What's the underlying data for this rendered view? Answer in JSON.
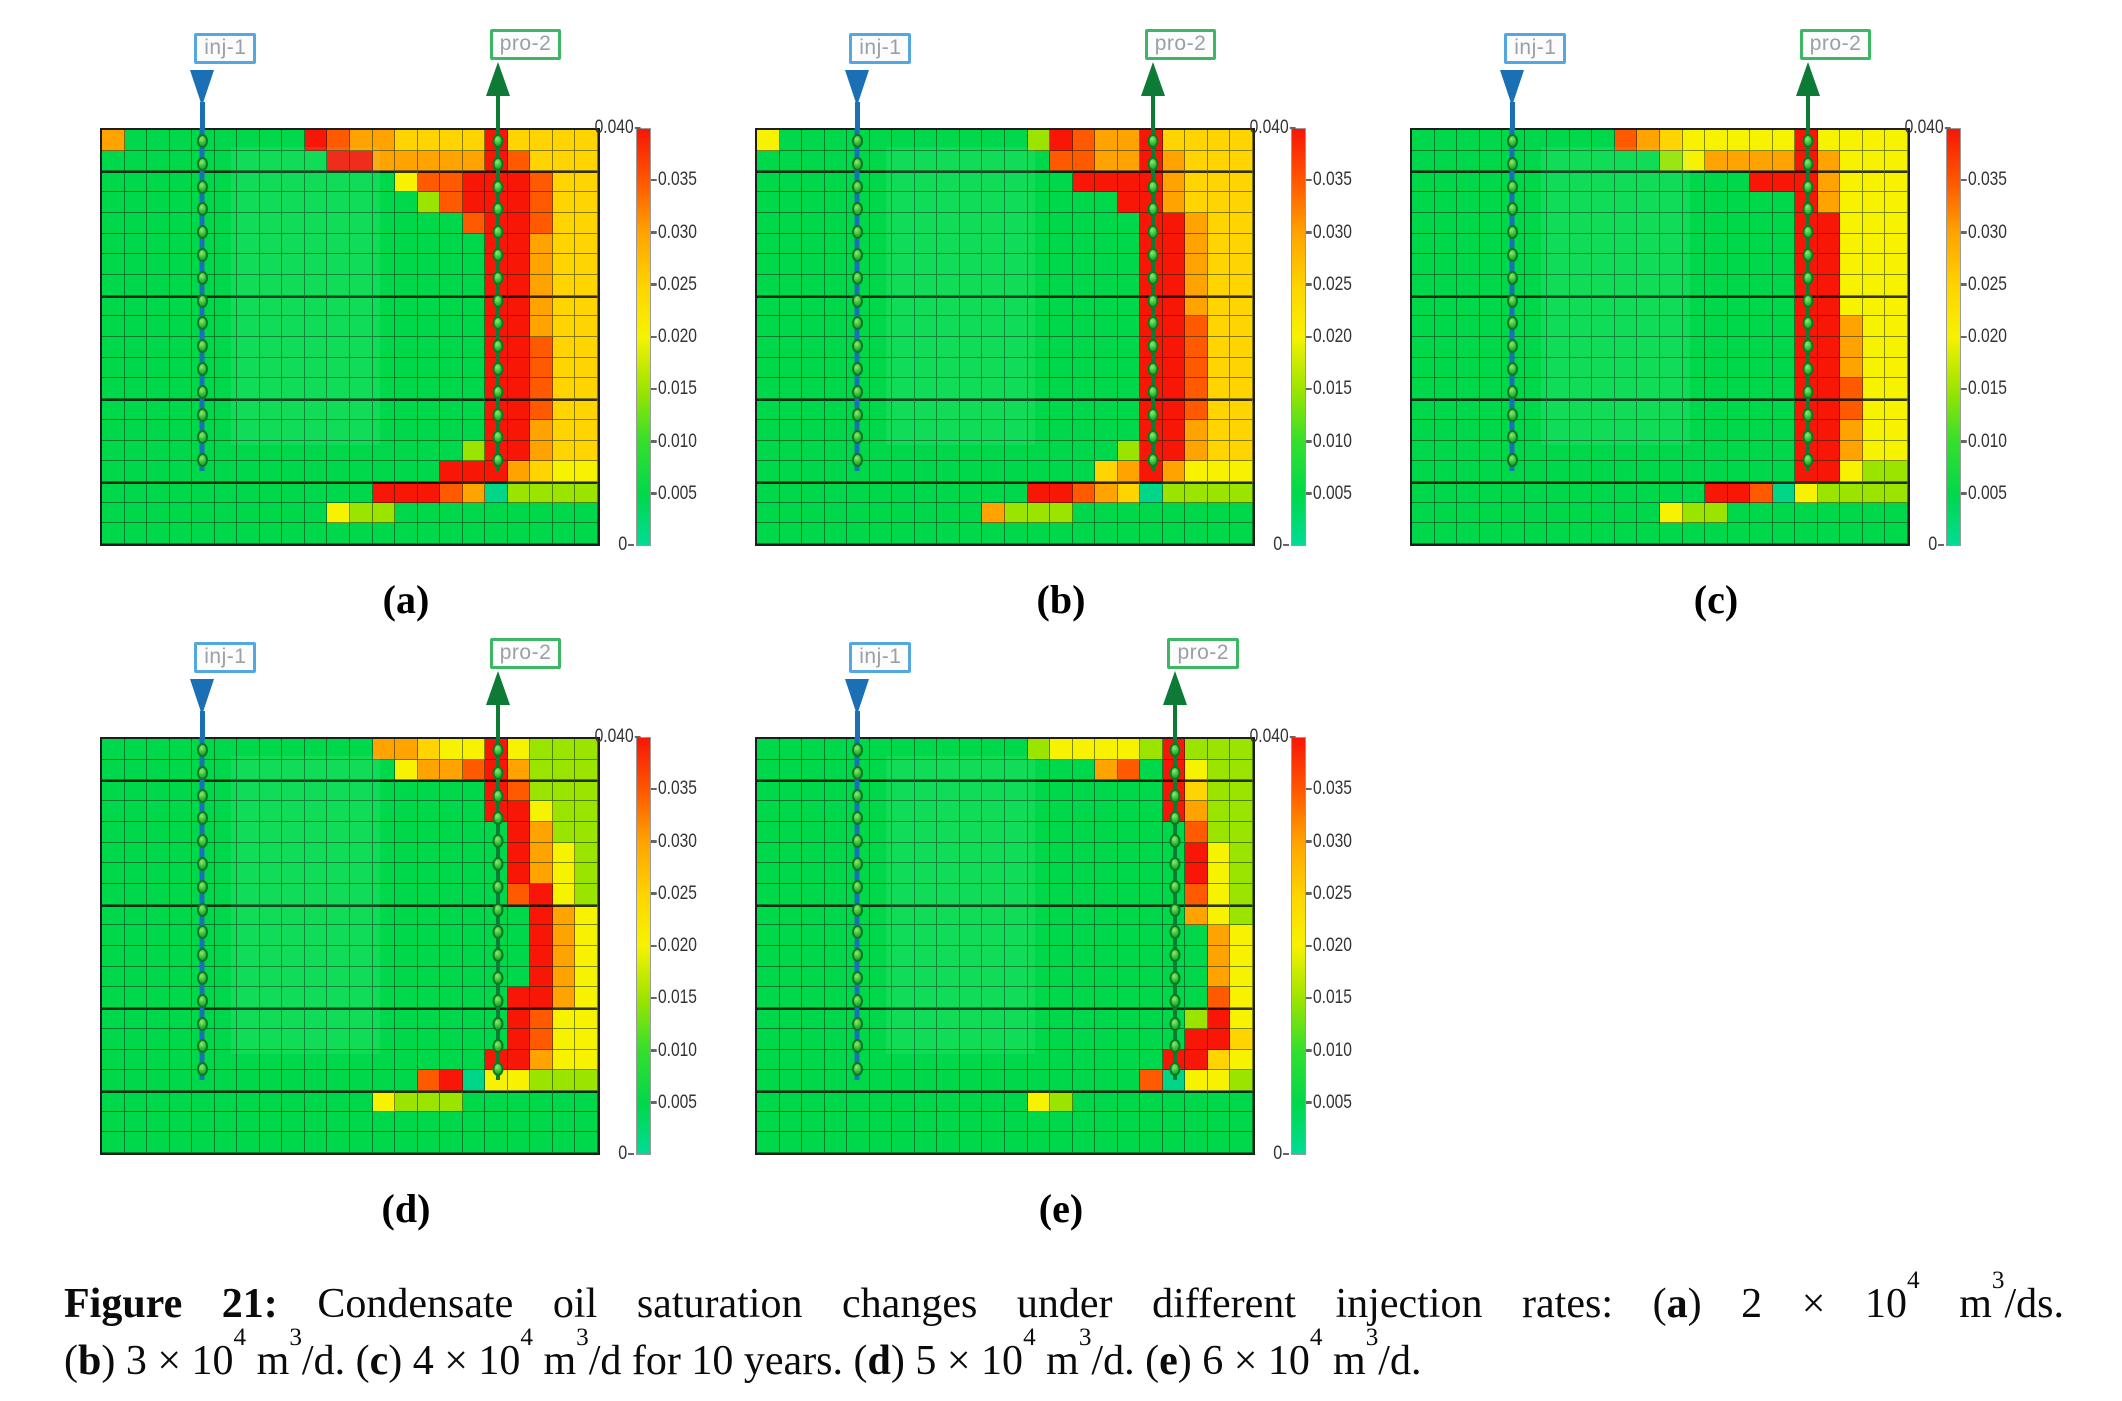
{
  "figure": {
    "caption_lines": [
      [
        {
          "t": "Figure 21:",
          "b": 1
        },
        {
          "t": " Condensate oil saturation changes under different injection rates: ("
        },
        {
          "t": "a",
          "b": 1
        },
        {
          "t": ") 2 × 10"
        },
        {
          "t": "4",
          "s": 1
        },
        {
          "t": " m"
        },
        {
          "t": "3",
          "s": 1
        },
        {
          "t": "/ds."
        }
      ],
      [
        {
          "t": "("
        },
        {
          "t": "b",
          "b": 1
        },
        {
          "t": ") 3 × 10"
        },
        {
          "t": "4",
          "s": 1
        },
        {
          "t": " m"
        },
        {
          "t": "3",
          "s": 1
        },
        {
          "t": "/d. ("
        },
        {
          "t": "c",
          "b": 1
        },
        {
          "t": ") 4 × 10"
        },
        {
          "t": "4",
          "s": 1
        },
        {
          "t": " m"
        },
        {
          "t": "3",
          "s": 1
        },
        {
          "t": "/d for 10 years. ("
        },
        {
          "t": "d",
          "b": 1
        },
        {
          "t": ") 5 × 10"
        },
        {
          "t": "4",
          "s": 1
        },
        {
          "t": " m"
        },
        {
          "t": "3",
          "s": 1
        },
        {
          "t": "/d. ("
        },
        {
          "t": "e",
          "b": 1
        },
        {
          "t": ") 6 × 10"
        },
        {
          "t": "4",
          "s": 1
        },
        {
          "t": " m"
        },
        {
          "t": "3",
          "s": 1
        },
        {
          "t": "/d."
        }
      ]
    ]
  },
  "wells": {
    "injector_name": "inj-1",
    "producer_name": "pro-2",
    "injector_color": "#1a6fb5",
    "injector_box_border": "#54a7e0",
    "producer_color": "#0d7a35",
    "producer_box_border": "#3cb863",
    "label_text_color": "#98a0a8"
  },
  "colorbar": {
    "max_label": "0.040",
    "min_label": "0",
    "side_labels": [
      "0.035",
      "0.030",
      "0.025",
      "0.020",
      "0.015",
      "0.010",
      "0.005"
    ],
    "gradient_top_to_bottom": [
      "#f81606",
      "#ff5a00",
      "#ffa300",
      "#ffd400",
      "#f6f200",
      "#9ae400",
      "#35df2c",
      "#00d84b",
      "#00dc95"
    ]
  },
  "palette": {
    "g": "#00d84b",
    "l": "#9ae400",
    "y": "#f6f200",
    "d": "#ffd400",
    "o": "#ffa300",
    "O": "#ff5a00",
    "r": "#f81606",
    "t": "#00d687"
  },
  "panels": [
    {
      "letter": "(a)",
      "row": 1,
      "inj_col": 4,
      "pro_col": 17,
      "grid": [
        "oggggggggrOooddddrdddd",
        "ggggggggggrrooooorOddd",
        "gggggggggggggyOOrrrOdd",
        "gggggggggggggglOrrrOdd",
        "ggggggggggggggggOrrOdd",
        "gggggggggggggggggrrodd",
        "gggggggggggggggggrrodd",
        "gggggggggggggggggrrodd",
        "gggggggggggggggggrrodd",
        "gggggggggggggggggrrodd",
        "gggggggggggggggggrrOdd",
        "gggggggggggggggggrrOdd",
        "gggggggggggggggggrrOdd",
        "gggggggggggggggggrrOdd",
        "gggggggggggggggggrrodd",
        "gggggggggggggggglrrodd",
        "gggggggggggggggrrrodyy",
        "ggggggggggggrrrOotllll",
        "ggggggggggyllggggggggg",
        "gggggggggggggggggggggg"
      ]
    },
    {
      "letter": "(b)",
      "row": 1,
      "inj_col": 4,
      "pro_col": 17,
      "grid": [
        "yggggggggggglrOoordddd",
        "gggggggggggggOOooroddd",
        "ggggggggggggggrrrroddd",
        "ggggggggggggggggrroddd",
        "gggggggggggggggggrrodd",
        "gggggggggggggggggrrodd",
        "gggggggggggggggggrrodd",
        "gggggggggggggggggrrodd",
        "gggggggggggggggggrrodd",
        "gggggggggggggggggrrOdd",
        "gggggggggggggggggrrOdd",
        "gggggggggggggggggrrOdd",
        "gggggggggggggggggrrOdd",
        "gggggggggggggggggrrOdd",
        "gggggggggggggggggrrodd",
        "gggggggggggggggglrrodd",
        "gggggggggggggggdoroyyy",
        "ggggggggggggrrOodtllll",
        "ggggggggggolllgggggggg",
        "gggggggggggggggggggggg"
      ]
    },
    {
      "letter": "(c)",
      "row": 1,
      "inj_col": 4,
      "pro_col": 17,
      "grid": [
        "gggggggggOodyyyyyryyyy",
        "ggggggggggglyooooroyyy",
        "gggggggggggggggrrroyyy",
        "gggggggggggggggggroyyy",
        "gggggggggggggggggrryyy",
        "gggggggggggggggggrryyy",
        "gggggggggggggggggrryyy",
        "gggggggggggggggggrryyy",
        "gggggggggggggggggrryyy",
        "gggggggggggggggggrroyy",
        "gggggggggggggggggrroyy",
        "gggggggggggggggggrroyy",
        "gggggggggggggggggrrOyy",
        "gggggggggggggggggrrOyy",
        "gggggggggggggggggrroyy",
        "gggggggggggggggggrroyy",
        "gggggggggggggggggrryll",
        "gggggggggggggrrOtyllll",
        "gggggggggggyllgggggggg",
        "gggggggggggggggggggggg"
      ]
    },
    {
      "letter": "(d)",
      "row": 2,
      "inj_col": 4,
      "pro_col": 17,
      "grid": [
        "ggggggggggggoodyyrylll",
        "gggggggggggggyooOrolll",
        "gggggggggggggggggrOlll",
        "gggggggggggggggggrryll",
        "ggggggggggggggggggroll",
        "ggggggggggggggggggroyl",
        "ggggggggggggggggggroyl",
        "ggggggggggggggggggOryl",
        "gggggggggggggggggggroy",
        "gggggggggggggggggggroy",
        "gggggggggggggggggggroy",
        "gggggggggggggggggggroy",
        "ggggggggggggggggggrroy",
        "ggggggggggggggggggrOyy",
        "ggggggggggggggggggrOyy",
        "gggggggggggggggggrroyy",
        "ggggggggggggggOrtyylll",
        "ggggggggggggylllgggggg",
        "gggggggggggggggggggggg",
        "gggggggggggggggggggggg"
      ]
    },
    {
      "letter": "(e)",
      "row": 2,
      "inj_col": 4,
      "pro_col": 18,
      "grid": [
        "gggggggggggglyyyylrlll",
        "gggggggggggggggoOgryll",
        "ggggggggggggggggggrdll",
        "ggggggggggggggggggroll",
        "gggggggggggggggggggOll",
        "gggggggggggggggggggryl",
        "gggggggggggggggggggryl",
        "gggggggggggggggggggOyl",
        "gggggggggggggggggggoyl",
        "ggggggggggggggggggggoy",
        "ggggggggggggggggggggoy",
        "ggggggggggggggggggggoy",
        "ggggggggggggggggggggOy",
        "ggggggggggggggggggglry",
        "gggggggggggggggggggrrd",
        "ggggggggggggggggggrrdy",
        "gggggggggggggggggOtyyl",
        "ggggggggggggylgggggggg",
        "gggggggggggggggggggggg",
        "gggggggggggggggggggggg"
      ]
    }
  ],
  "chart_data": {
    "type": "heatmap",
    "quantity": "Condensate oil saturation",
    "value_range": [
      0,
      0.04
    ],
    "colorbar_ticks": [
      0,
      0.005,
      0.01,
      0.015,
      0.02,
      0.025,
      0.03,
      0.035,
      0.04
    ],
    "legend_position": "right of each panel",
    "grid_size": {
      "columns": 22,
      "rows": 20
    },
    "value_map": {
      "g": 0.004,
      "t": 0.002,
      "l": 0.018,
      "y": 0.023,
      "d": 0.027,
      "o": 0.03,
      "O": 0.034,
      "r": 0.039
    },
    "wells": [
      "inj-1 (injector, blue down arrow)",
      "pro-2 (producer, green up arrow)"
    ],
    "panels": [
      {
        "label": "(a)",
        "injection_rate": "2 × 10^4 m^3/ds"
      },
      {
        "label": "(b)",
        "injection_rate": "3 × 10^4 m^3/d"
      },
      {
        "label": "(c)",
        "injection_rate": "4 × 10^4 m^3/d for 10 years"
      },
      {
        "label": "(d)",
        "injection_rate": "5 × 10^4 m^3/d"
      },
      {
        "label": "(e)",
        "injection_rate": "6 × 10^4 m^3/d"
      }
    ]
  }
}
